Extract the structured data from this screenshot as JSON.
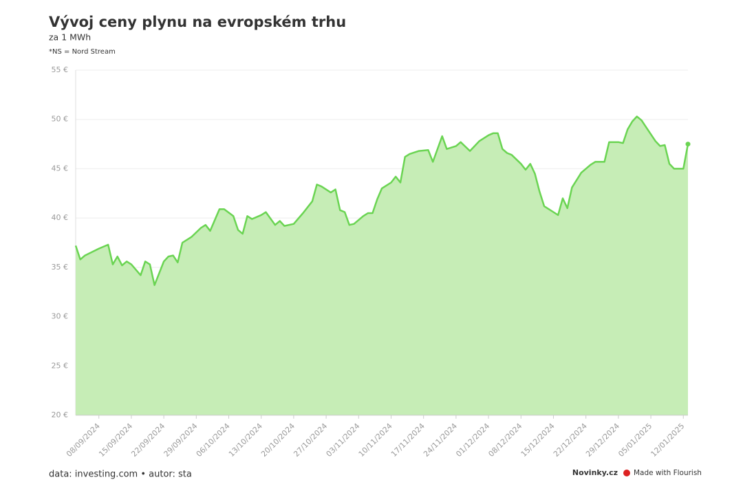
{
  "chart_data": {
    "type": "area",
    "title": "Vývoj ceny plynu na evropském trhu",
    "subtitle": "za 1 MWh",
    "note": "*NS = Nord Stream",
    "source": "data: investing.com • autor: sta",
    "brand": "Novinky.cz",
    "credit": "Made with Flourish",
    "color": "#6ad452",
    "fill_color": "#c6edb6",
    "grid": true,
    "x": [
      "2024-09-03",
      "2024-09-04",
      "2024-09-05",
      "2024-09-08",
      "2024-09-10",
      "2024-09-11",
      "2024-09-12",
      "2024-09-13",
      "2024-09-14",
      "2024-09-15",
      "2024-09-17",
      "2024-09-18",
      "2024-09-19",
      "2024-09-20",
      "2024-09-22",
      "2024-09-23",
      "2024-09-24",
      "2024-09-25",
      "2024-09-26",
      "2024-09-28",
      "2024-09-30",
      "2024-10-01",
      "2024-10-02",
      "2024-10-04",
      "2024-10-05",
      "2024-10-07",
      "2024-10-08",
      "2024-10-09",
      "2024-10-10",
      "2024-10-11",
      "2024-10-13",
      "2024-10-14",
      "2024-10-16",
      "2024-10-17",
      "2024-10-18",
      "2024-10-20",
      "2024-10-22",
      "2024-10-24",
      "2024-10-25",
      "2024-10-26",
      "2024-10-28",
      "2024-10-29",
      "2024-10-30",
      "2024-10-31",
      "2024-11-01",
      "2024-11-02",
      "2024-11-04",
      "2024-11-05",
      "2024-11-06",
      "2024-11-07",
      "2024-11-08",
      "2024-11-10",
      "2024-11-11",
      "2024-11-12",
      "2024-11-13",
      "2024-11-14",
      "2024-11-16",
      "2024-11-18",
      "2024-11-19",
      "2024-11-21",
      "2024-11-22",
      "2024-11-24",
      "2024-11-25",
      "2024-11-27",
      "2024-11-29",
      "2024-12-01",
      "2024-12-02",
      "2024-12-03",
      "2024-12-04",
      "2024-12-05",
      "2024-12-06",
      "2024-12-08",
      "2024-12-09",
      "2024-12-10",
      "2024-12-11",
      "2024-12-12",
      "2024-12-13",
      "2024-12-15",
      "2024-12-16",
      "2024-12-17",
      "2024-12-18",
      "2024-12-19",
      "2024-12-21",
      "2024-12-23",
      "2024-12-24",
      "2024-12-26",
      "2024-12-27",
      "2024-12-29",
      "2024-12-30",
      "2024-12-31",
      "2025-01-01",
      "2025-01-02",
      "2025-01-03",
      "2025-01-04",
      "2025-01-06",
      "2025-01-07",
      "2025-01-08",
      "2025-01-09",
      "2025-01-10",
      "2025-01-12",
      "2025-01-13"
    ],
    "values": [
      37.2,
      35.8,
      36.2,
      36.9,
      37.3,
      35.3,
      36.1,
      35.2,
      35.6,
      35.3,
      34.2,
      35.6,
      35.3,
      33.2,
      35.6,
      36.1,
      36.2,
      35.5,
      37.5,
      38.1,
      39.0,
      39.3,
      38.7,
      40.9,
      40.9,
      40.2,
      38.8,
      38.4,
      40.2,
      39.9,
      40.3,
      40.6,
      39.3,
      39.7,
      39.2,
      39.4,
      40.5,
      41.7,
      43.4,
      43.2,
      42.6,
      42.9,
      40.8,
      40.6,
      39.3,
      39.4,
      40.2,
      40.5,
      40.5,
      41.9,
      43.0,
      43.6,
      44.2,
      43.6,
      46.2,
      46.5,
      46.8,
      46.9,
      45.7,
      48.3,
      47.0,
      47.3,
      47.7,
      46.8,
      47.8,
      48.4,
      48.6,
      48.6,
      47.0,
      46.6,
      46.4,
      45.5,
      44.9,
      45.5,
      44.5,
      42.7,
      41.2,
      40.6,
      40.3,
      42.0,
      41.0,
      43.1,
      44.6,
      45.4,
      45.7,
      45.7,
      47.7,
      47.7,
      47.6,
      49.0,
      49.8,
      50.3,
      49.9,
      49.2,
      47.8,
      47.3,
      47.4,
      45.5,
      45.0,
      45.0,
      47.5
    ],
    "xlim": [
      "2024-09-03",
      "2025-01-13"
    ],
    "xticks": [
      {
        "value": "2024-09-08",
        "label": "08/09/2024"
      },
      {
        "value": "2024-09-15",
        "label": "15/09/2024"
      },
      {
        "value": "2024-09-22",
        "label": "22/09/2024"
      },
      {
        "value": "2024-09-29",
        "label": "29/09/2024"
      },
      {
        "value": "2024-10-06",
        "label": "06/10/2024"
      },
      {
        "value": "2024-10-13",
        "label": "13/10/2024"
      },
      {
        "value": "2024-10-20",
        "label": "20/10/2024"
      },
      {
        "value": "2024-10-27",
        "label": "27/10/2024"
      },
      {
        "value": "2024-11-03",
        "label": "03/11/2024"
      },
      {
        "value": "2024-11-10",
        "label": "10/11/2024"
      },
      {
        "value": "2024-11-17",
        "label": "17/11/2024"
      },
      {
        "value": "2024-11-24",
        "label": "24/11/2024"
      },
      {
        "value": "2024-12-01",
        "label": "01/12/2024"
      },
      {
        "value": "2024-12-08",
        "label": "08/12/2024"
      },
      {
        "value": "2024-12-15",
        "label": "15/12/2024"
      },
      {
        "value": "2024-12-22",
        "label": "22/12/2024"
      },
      {
        "value": "2024-12-29",
        "label": "29/12/2024"
      },
      {
        "value": "2025-01-05",
        "label": "05/01/2025"
      },
      {
        "value": "2025-01-12",
        "label": "12/01/2025"
      }
    ],
    "ylim": [
      20,
      55
    ],
    "yticks": [
      {
        "value": 20,
        "label": "20 €"
      },
      {
        "value": 25,
        "label": "25 €"
      },
      {
        "value": 30,
        "label": "30 €"
      },
      {
        "value": 35,
        "label": "35 €"
      },
      {
        "value": 40,
        "label": "40 €"
      },
      {
        "value": 45,
        "label": "45 €"
      },
      {
        "value": 50,
        "label": "50 €"
      },
      {
        "value": 55,
        "label": "55 €"
      }
    ]
  }
}
